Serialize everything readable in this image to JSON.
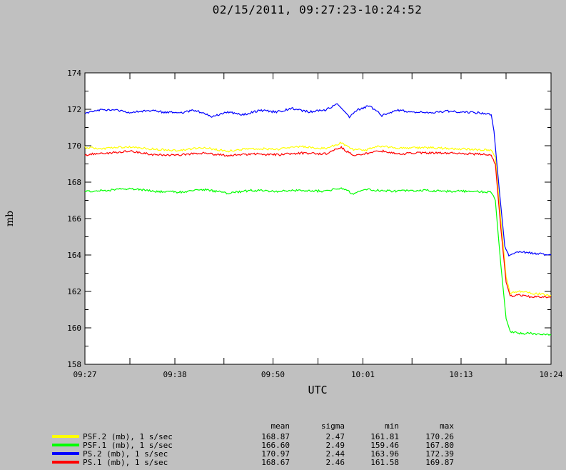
{
  "title": "02/15/2011, 09:27:23-10:24:52",
  "chart_data": {
    "type": "line",
    "ylabel": "mb",
    "xlabel": "UTC",
    "ylim": [
      158,
      174
    ],
    "yticks": [
      158,
      160,
      162,
      164,
      166,
      168,
      170,
      172,
      174
    ],
    "xlim": [
      "09:27:23",
      "10:24:52"
    ],
    "xticks": [
      "09:27",
      "09:38",
      "09:50",
      "10:01",
      "10:13",
      "10:24"
    ],
    "grid": false,
    "series": [
      {
        "name": "PSF.2 (mb), 1 s/sec",
        "color": "#ffff00",
        "points": [
          [
            "09:27:23",
            169.9
          ],
          [
            "09:30:00",
            169.85
          ],
          [
            "09:33:00",
            169.95
          ],
          [
            "09:36:00",
            169.8
          ],
          [
            "09:39:00",
            169.75
          ],
          [
            "09:42:00",
            169.9
          ],
          [
            "09:45:00",
            169.7
          ],
          [
            "09:48:00",
            169.85
          ],
          [
            "09:51:00",
            169.8
          ],
          [
            "09:54:00",
            169.95
          ],
          [
            "09:57:00",
            169.85
          ],
          [
            "09:59:00",
            170.15
          ],
          [
            "10:00:30",
            169.8
          ],
          [
            "10:02:00",
            169.75
          ],
          [
            "10:03:30",
            170.0
          ],
          [
            "10:06:00",
            169.85
          ],
          [
            "10:09:00",
            169.9
          ],
          [
            "10:12:00",
            169.85
          ],
          [
            "10:15:00",
            169.8
          ],
          [
            "10:17:30",
            169.75
          ],
          [
            "10:18:00",
            169.4
          ],
          [
            "10:18:40",
            166.0
          ],
          [
            "10:19:20",
            162.8
          ],
          [
            "10:19:50",
            161.9
          ],
          [
            "10:21:00",
            162.0
          ],
          [
            "10:22:30",
            161.9
          ],
          [
            "10:24:52",
            161.8
          ]
        ]
      },
      {
        "name": "PSF.1 (mb), 1 s/sec",
        "color": "#00ff00",
        "points": [
          [
            "09:27:23",
            167.5
          ],
          [
            "09:30:00",
            167.55
          ],
          [
            "09:33:00",
            167.65
          ],
          [
            "09:36:00",
            167.5
          ],
          [
            "09:39:00",
            167.45
          ],
          [
            "09:42:00",
            167.6
          ],
          [
            "09:45:00",
            167.4
          ],
          [
            "09:48:00",
            167.55
          ],
          [
            "09:51:00",
            167.5
          ],
          [
            "09:54:00",
            167.55
          ],
          [
            "09:57:00",
            167.5
          ],
          [
            "09:59:00",
            167.7
          ],
          [
            "10:00:30",
            167.35
          ],
          [
            "10:02:00",
            167.6
          ],
          [
            "10:03:30",
            167.55
          ],
          [
            "10:06:00",
            167.5
          ],
          [
            "10:09:00",
            167.55
          ],
          [
            "10:12:00",
            167.5
          ],
          [
            "10:15:00",
            167.5
          ],
          [
            "10:17:30",
            167.45
          ],
          [
            "10:18:00",
            167.0
          ],
          [
            "10:18:40",
            163.5
          ],
          [
            "10:19:20",
            160.5
          ],
          [
            "10:19:50",
            159.8
          ],
          [
            "10:21:00",
            159.7
          ],
          [
            "10:22:30",
            159.7
          ],
          [
            "10:24:52",
            159.6
          ]
        ]
      },
      {
        "name": "PS.2 (mb), 1 s/sec",
        "color": "#0000ff",
        "points": [
          [
            "09:27:23",
            171.8
          ],
          [
            "09:29:00",
            171.95
          ],
          [
            "09:31:00",
            172.0
          ],
          [
            "09:33:00",
            171.8
          ],
          [
            "09:35:00",
            171.95
          ],
          [
            "09:37:00",
            171.85
          ],
          [
            "09:39:00",
            171.8
          ],
          [
            "09:41:00",
            171.95
          ],
          [
            "09:43:00",
            171.6
          ],
          [
            "09:45:00",
            171.85
          ],
          [
            "09:47:00",
            171.7
          ],
          [
            "09:49:00",
            171.95
          ],
          [
            "09:51:00",
            171.85
          ],
          [
            "09:53:00",
            172.05
          ],
          [
            "09:55:00",
            171.85
          ],
          [
            "09:57:00",
            171.95
          ],
          [
            "09:58:30",
            172.3
          ],
          [
            "10:00:00",
            171.6
          ],
          [
            "10:01:00",
            171.95
          ],
          [
            "10:02:30",
            172.2
          ],
          [
            "10:04:00",
            171.65
          ],
          [
            "10:06:00",
            171.95
          ],
          [
            "10:08:00",
            171.85
          ],
          [
            "10:10:00",
            171.8
          ],
          [
            "10:12:00",
            171.9
          ],
          [
            "10:14:00",
            171.85
          ],
          [
            "10:16:00",
            171.8
          ],
          [
            "10:17:30",
            171.7
          ],
          [
            "10:17:50",
            170.8
          ],
          [
            "10:18:30",
            167.5
          ],
          [
            "10:19:10",
            164.5
          ],
          [
            "10:19:40",
            164.0
          ],
          [
            "10:21:00",
            164.2
          ],
          [
            "10:22:30",
            164.1
          ],
          [
            "10:24:52",
            164.0
          ]
        ]
      },
      {
        "name": "PS.1 (mb), 1 s/sec",
        "color": "#ff0000",
        "points": [
          [
            "09:27:23",
            169.5
          ],
          [
            "09:30:00",
            169.6
          ],
          [
            "09:33:00",
            169.7
          ],
          [
            "09:36:00",
            169.5
          ],
          [
            "09:39:00",
            169.5
          ],
          [
            "09:42:00",
            169.6
          ],
          [
            "09:45:00",
            169.45
          ],
          [
            "09:48:00",
            169.55
          ],
          [
            "09:51:00",
            169.5
          ],
          [
            "09:54:00",
            169.6
          ],
          [
            "09:57:00",
            169.55
          ],
          [
            "09:59:00",
            169.9
          ],
          [
            "10:00:30",
            169.45
          ],
          [
            "10:02:00",
            169.55
          ],
          [
            "10:03:30",
            169.75
          ],
          [
            "10:06:00",
            169.55
          ],
          [
            "10:09:00",
            169.6
          ],
          [
            "10:12:00",
            169.6
          ],
          [
            "10:15:00",
            169.55
          ],
          [
            "10:17:30",
            169.5
          ],
          [
            "10:18:00",
            169.0
          ],
          [
            "10:18:40",
            165.5
          ],
          [
            "10:19:20",
            162.5
          ],
          [
            "10:19:50",
            161.75
          ],
          [
            "10:21:00",
            161.8
          ],
          [
            "10:22:30",
            161.7
          ],
          [
            "10:24:52",
            161.7
          ]
        ]
      }
    ]
  },
  "stats": {
    "headers": [
      "mean",
      "sigma",
      "min",
      "max"
    ],
    "rows": [
      {
        "label": "PSF.2 (mb), 1 s/sec",
        "color": "#ffff00",
        "mean": "168.87",
        "sigma": "2.47",
        "min": "161.81",
        "max": "170.26"
      },
      {
        "label": "PSF.1 (mb), 1 s/sec",
        "color": "#00ff00",
        "mean": "166.60",
        "sigma": "2.49",
        "min": "159.46",
        "max": "167.80"
      },
      {
        "label": "PS.2 (mb), 1 s/sec",
        "color": "#0000ff",
        "mean": "170.97",
        "sigma": "2.44",
        "min": "163.96",
        "max": "172.39"
      },
      {
        "label": "PS.1 (mb), 1 s/sec",
        "color": "#ff0000",
        "mean": "168.67",
        "sigma": "2.46",
        "min": "161.58",
        "max": "169.87"
      }
    ]
  }
}
